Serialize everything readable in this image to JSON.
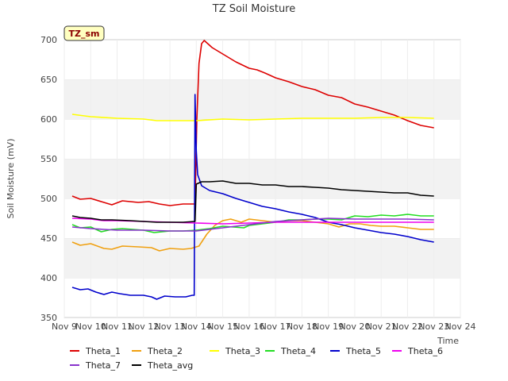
{
  "chart_data": {
    "type": "line",
    "title": "TZ Soil Moisture",
    "badge": "TZ_sm",
    "xlabel": "Time",
    "ylabel": "Soil Moisture (mV)",
    "ylim": [
      350,
      700
    ],
    "yticks": [
      350,
      400,
      450,
      500,
      550,
      600,
      650,
      700
    ],
    "xlim": [
      0,
      15
    ],
    "xticks": [
      {
        "value": 0,
        "label": "Nov 9"
      },
      {
        "value": 1,
        "label": "Nov 10"
      },
      {
        "value": 2,
        "label": "Nov 11"
      },
      {
        "value": 3,
        "label": "Nov 12"
      },
      {
        "value": 4,
        "label": "Nov 13"
      },
      {
        "value": 5,
        "label": "Nov 14"
      },
      {
        "value": 6,
        "label": "Nov 15"
      },
      {
        "value": 7,
        "label": "Nov 16"
      },
      {
        "value": 8,
        "label": "Nov 17"
      },
      {
        "value": 9,
        "label": "Nov 18"
      },
      {
        "value": 10,
        "label": "Nov 19"
      },
      {
        "value": 11,
        "label": "Nov 20"
      },
      {
        "value": 12,
        "label": "Nov 21"
      },
      {
        "value": 13,
        "label": "Nov 22"
      },
      {
        "value": 14,
        "label": "Nov 23"
      },
      {
        "value": 15,
        "label": "Nov 24"
      }
    ],
    "grid": "horizontal bands",
    "legend_position": "bottom",
    "series": [
      {
        "name": "Theta_1",
        "color": "#dd0000",
        "points": [
          [
            0.3,
            503
          ],
          [
            0.6,
            499
          ],
          [
            1,
            500
          ],
          [
            1.5,
            495
          ],
          [
            1.8,
            492
          ],
          [
            2.2,
            497
          ],
          [
            2.8,
            495
          ],
          [
            3.2,
            496
          ],
          [
            3.6,
            493
          ],
          [
            4,
            491
          ],
          [
            4.5,
            493
          ],
          [
            4.95,
            493
          ],
          [
            5.02,
            600
          ],
          [
            5.1,
            670
          ],
          [
            5.2,
            695
          ],
          [
            5.3,
            699
          ],
          [
            5.6,
            690
          ],
          [
            6,
            682
          ],
          [
            6.5,
            672
          ],
          [
            7,
            664
          ],
          [
            7.3,
            662
          ],
          [
            7.6,
            658
          ],
          [
            8,
            652
          ],
          [
            8.5,
            647
          ],
          [
            9,
            641
          ],
          [
            9.5,
            637
          ],
          [
            10,
            630
          ],
          [
            10.5,
            627
          ],
          [
            11,
            619
          ],
          [
            11.5,
            615
          ],
          [
            12,
            610
          ],
          [
            12.5,
            605
          ],
          [
            13,
            598
          ],
          [
            13.5,
            592
          ],
          [
            14,
            589
          ]
        ]
      },
      {
        "name": "Theta_2",
        "color": "#f0a010",
        "points": [
          [
            0.3,
            445
          ],
          [
            0.6,
            441
          ],
          [
            1,
            443
          ],
          [
            1.5,
            437
          ],
          [
            1.8,
            436
          ],
          [
            2.2,
            440
          ],
          [
            2.8,
            439
          ],
          [
            3.3,
            438
          ],
          [
            3.6,
            434
          ],
          [
            4,
            437
          ],
          [
            4.5,
            436
          ],
          [
            4.8,
            437
          ],
          [
            5.1,
            440
          ],
          [
            5.4,
            455
          ],
          [
            5.7,
            466
          ],
          [
            6,
            472
          ],
          [
            6.3,
            474
          ],
          [
            6.7,
            470
          ],
          [
            7,
            474
          ],
          [
            7.5,
            472
          ],
          [
            8,
            470
          ],
          [
            8.5,
            472
          ],
          [
            9,
            472
          ],
          [
            9.5,
            470
          ],
          [
            10,
            468
          ],
          [
            10.4,
            464
          ],
          [
            10.8,
            468
          ],
          [
            11.2,
            468
          ],
          [
            11.6,
            466
          ],
          [
            12,
            465
          ],
          [
            12.5,
            465
          ],
          [
            13,
            463
          ],
          [
            13.5,
            461
          ],
          [
            14,
            461
          ]
        ]
      },
      {
        "name": "Theta_3",
        "color": "#ffff00",
        "points": [
          [
            0.3,
            606
          ],
          [
            1,
            603
          ],
          [
            2,
            601
          ],
          [
            3,
            600
          ],
          [
            3.5,
            598
          ],
          [
            4,
            598
          ],
          [
            5,
            598
          ],
          [
            6,
            600
          ],
          [
            7,
            599
          ],
          [
            8,
            600
          ],
          [
            9,
            601
          ],
          [
            10,
            601
          ],
          [
            11,
            601
          ],
          [
            12,
            602
          ],
          [
            13,
            602
          ],
          [
            14,
            601
          ]
        ]
      },
      {
        "name": "Theta_4",
        "color": "#22dd22",
        "points": [
          [
            0.3,
            467
          ],
          [
            0.6,
            463
          ],
          [
            1,
            464
          ],
          [
            1.4,
            458
          ],
          [
            1.8,
            461
          ],
          [
            2.2,
            462
          ],
          [
            3,
            460
          ],
          [
            3.4,
            457
          ],
          [
            4,
            459
          ],
          [
            4.5,
            459
          ],
          [
            5,
            460
          ],
          [
            5.5,
            462
          ],
          [
            6,
            465
          ],
          [
            6.4,
            464
          ],
          [
            6.8,
            463
          ],
          [
            7,
            466
          ],
          [
            7.5,
            468
          ],
          [
            8,
            470
          ],
          [
            8.5,
            473
          ],
          [
            9,
            473
          ],
          [
            9.5,
            474
          ],
          [
            10,
            474
          ],
          [
            10.5,
            473
          ],
          [
            11,
            478
          ],
          [
            11.5,
            477
          ],
          [
            12,
            479
          ],
          [
            12.5,
            478
          ],
          [
            13,
            480
          ],
          [
            13.5,
            478
          ],
          [
            14,
            478
          ]
        ]
      },
      {
        "name": "Theta_5",
        "color": "#0000cc",
        "points": [
          [
            0.3,
            388
          ],
          [
            0.6,
            385
          ],
          [
            0.9,
            386
          ],
          [
            1.2,
            382
          ],
          [
            1.5,
            379
          ],
          [
            1.8,
            382
          ],
          [
            2.1,
            380
          ],
          [
            2.5,
            378
          ],
          [
            3,
            378
          ],
          [
            3.3,
            376
          ],
          [
            3.5,
            373
          ],
          [
            3.8,
            377
          ],
          [
            4.2,
            376
          ],
          [
            4.6,
            376
          ],
          [
            4.85,
            378
          ],
          [
            4.92,
            378
          ],
          [
            4.95,
            631
          ],
          [
            5.0,
            560
          ],
          [
            5.05,
            530
          ],
          [
            5.2,
            516
          ],
          [
            5.5,
            510
          ],
          [
            6,
            506
          ],
          [
            6.5,
            500
          ],
          [
            7,
            495
          ],
          [
            7.5,
            490
          ],
          [
            8,
            487
          ],
          [
            8.5,
            483
          ],
          [
            9,
            480
          ],
          [
            9.5,
            476
          ],
          [
            10,
            470
          ],
          [
            10.5,
            467
          ],
          [
            11,
            463
          ],
          [
            11.5,
            460
          ],
          [
            12,
            457
          ],
          [
            12.5,
            455
          ],
          [
            13,
            452
          ],
          [
            13.5,
            448
          ],
          [
            14,
            445
          ]
        ]
      },
      {
        "name": "Theta_6",
        "color": "#ee00ee",
        "points": [
          [
            0.3,
            475
          ],
          [
            1,
            474
          ],
          [
            1.5,
            472
          ],
          [
            2,
            472
          ],
          [
            3,
            471
          ],
          [
            4,
            470
          ],
          [
            5,
            469
          ],
          [
            6,
            468
          ],
          [
            7,
            469
          ],
          [
            8,
            470
          ],
          [
            9,
            470
          ],
          [
            10,
            470
          ],
          [
            11,
            470
          ],
          [
            12,
            470
          ],
          [
            13,
            470
          ],
          [
            14,
            470
          ]
        ]
      },
      {
        "name": "Theta_7",
        "color": "#8833cc",
        "points": [
          [
            0.3,
            464
          ],
          [
            1,
            462
          ],
          [
            1.5,
            461
          ],
          [
            2,
            460
          ],
          [
            3,
            460
          ],
          [
            4,
            459
          ],
          [
            5,
            459
          ],
          [
            6,
            463
          ],
          [
            7,
            467
          ],
          [
            8,
            471
          ],
          [
            9,
            473
          ],
          [
            10,
            475
          ],
          [
            11,
            474
          ],
          [
            12,
            474
          ],
          [
            13,
            474
          ],
          [
            14,
            473
          ]
        ]
      },
      {
        "name": "Theta_avg",
        "color": "#000000",
        "points": [
          [
            0.3,
            478
          ],
          [
            0.6,
            476
          ],
          [
            1,
            475
          ],
          [
            1.4,
            473
          ],
          [
            1.8,
            473
          ],
          [
            2.5,
            472
          ],
          [
            3,
            471
          ],
          [
            3.5,
            470
          ],
          [
            4,
            470
          ],
          [
            4.5,
            470
          ],
          [
            4.95,
            471
          ],
          [
            5.0,
            518
          ],
          [
            5.2,
            521
          ],
          [
            5.5,
            521
          ],
          [
            6,
            522
          ],
          [
            6.5,
            519
          ],
          [
            7,
            519
          ],
          [
            7.5,
            517
          ],
          [
            8,
            517
          ],
          [
            8.5,
            515
          ],
          [
            9,
            515
          ],
          [
            9.5,
            514
          ],
          [
            10,
            513
          ],
          [
            10.5,
            511
          ],
          [
            11,
            510
          ],
          [
            11.5,
            509
          ],
          [
            12,
            508
          ],
          [
            12.5,
            507
          ],
          [
            13,
            507
          ],
          [
            13.5,
            504
          ],
          [
            14,
            503
          ]
        ]
      }
    ]
  }
}
